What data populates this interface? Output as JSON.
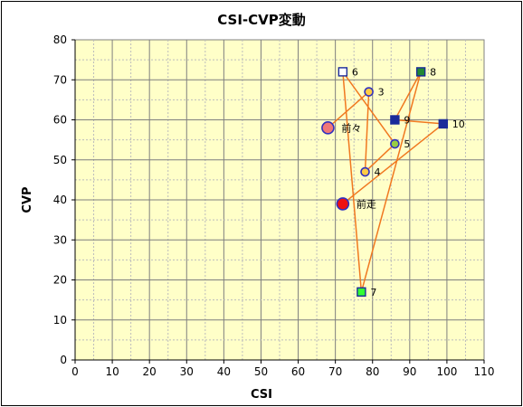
{
  "chart_data": {
    "type": "scatter",
    "title": "CSI-CVP変動",
    "xlabel": "CSI",
    "ylabel": "CVP",
    "xlim": [
      0,
      110
    ],
    "ylim": [
      0,
      80
    ],
    "xticks": [
      0,
      10,
      20,
      30,
      40,
      50,
      60,
      70,
      80,
      90,
      100,
      110
    ],
    "yticks": [
      0,
      10,
      20,
      30,
      40,
      50,
      60,
      70,
      80
    ],
    "grid": true,
    "background_color": "#ffffc8",
    "line_color": "#f07820",
    "points": [
      {
        "label": "前々",
        "x": 68,
        "y": 58,
        "marker": "circle",
        "fill": "#f07878",
        "size": "large"
      },
      {
        "label": "3",
        "x": 79,
        "y": 67,
        "marker": "circle",
        "fill": "#ffcc44",
        "size": "small"
      },
      {
        "label": "4",
        "x": 78,
        "y": 47,
        "marker": "circle",
        "fill": "#ffcc44",
        "size": "small"
      },
      {
        "label": "5",
        "x": 86,
        "y": 54,
        "marker": "circle",
        "fill": "#99cc44",
        "size": "small"
      },
      {
        "label": "6",
        "x": 72,
        "y": 72,
        "marker": "square",
        "fill": "#ffffff",
        "size": "small"
      },
      {
        "label": "7",
        "x": 77,
        "y": 17,
        "marker": "square",
        "fill": "#33ff33",
        "size": "small"
      },
      {
        "label": "8",
        "x": 93,
        "y": 72,
        "marker": "square",
        "fill": "#228833",
        "size": "small"
      },
      {
        "label": "9",
        "x": 86,
        "y": 60,
        "marker": "square",
        "fill": "#1a2a9a",
        "size": "small"
      },
      {
        "label": "10",
        "x": 99,
        "y": 59,
        "marker": "square",
        "fill": "#1a2a9a",
        "size": "small"
      },
      {
        "label": "前走",
        "x": 72,
        "y": 39,
        "marker": "circle",
        "fill": "#ee1111",
        "size": "large"
      }
    ]
  }
}
